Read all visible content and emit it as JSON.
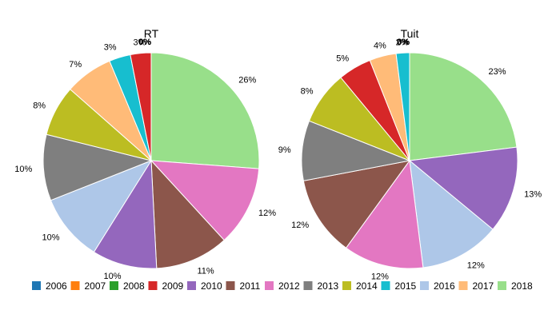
{
  "chart_data": {
    "type": "pie",
    "legend_position": "bottom",
    "categories": [
      "2006",
      "2007",
      "2008",
      "2009",
      "2010",
      "2011",
      "2012",
      "2013",
      "2014",
      "2015",
      "2016",
      "2017",
      "2018"
    ],
    "colors": {
      "2006": "#1f77b4",
      "2007": "#ff7f0e",
      "2008": "#2ca02c",
      "2009": "#d62728",
      "2010": "#9467bd",
      "2011": "#8c564b",
      "2012": "#e377c2",
      "2013": "#7f7f7f",
      "2014": "#bcbd22",
      "2015": "#17becf",
      "2016": "#aec7e8",
      "2017": "#ffbb78",
      "2018": "#98df8a"
    },
    "pies": [
      {
        "title": "RT",
        "slices": [
          {
            "category": "2018",
            "value": 26.2,
            "label": "26%"
          },
          {
            "category": "2012",
            "value": 12.0,
            "label": "12%"
          },
          {
            "category": "2011",
            "value": 11.0,
            "label": "11%"
          },
          {
            "category": "2010",
            "value": 9.7,
            "label": "10%"
          },
          {
            "category": "2016",
            "value": 10.1,
            "label": "10%"
          },
          {
            "category": "2013",
            "value": 9.9,
            "label": "10%"
          },
          {
            "category": "2014",
            "value": 7.6,
            "label": "8%"
          },
          {
            "category": "2017",
            "value": 7.2,
            "label": "7%"
          },
          {
            "category": "2015",
            "value": 3.2,
            "label": "3%"
          },
          {
            "category": "2009",
            "value": 3.1,
            "label": "3%"
          },
          {
            "category": "2008",
            "value": 0,
            "label": "0%"
          },
          {
            "category": "2007",
            "value": 0,
            "label": "0%"
          },
          {
            "category": "2006",
            "value": 0,
            "label": "0%"
          }
        ]
      },
      {
        "title": "Tuit",
        "slices": [
          {
            "category": "2018",
            "value": 23.0,
            "label": "23%"
          },
          {
            "category": "2010",
            "value": 13.0,
            "label": "13%"
          },
          {
            "category": "2016",
            "value": 12.0,
            "label": "12%"
          },
          {
            "category": "2012",
            "value": 12.0,
            "label": "12%"
          },
          {
            "category": "2011",
            "value": 12.0,
            "label": "12%"
          },
          {
            "category": "2013",
            "value": 9.0,
            "label": "9%"
          },
          {
            "category": "2014",
            "value": 8.0,
            "label": "8%"
          },
          {
            "category": "2009",
            "value": 5.0,
            "label": "5%"
          },
          {
            "category": "2017",
            "value": 4.0,
            "label": "4%"
          },
          {
            "category": "2015",
            "value": 2.0,
            "label": "2%"
          },
          {
            "category": "2008",
            "value": 0,
            "label": "0%"
          },
          {
            "category": "2007",
            "value": 0,
            "label": "0%"
          },
          {
            "category": "2006",
            "value": 0,
            "label": "0%"
          }
        ]
      }
    ]
  }
}
